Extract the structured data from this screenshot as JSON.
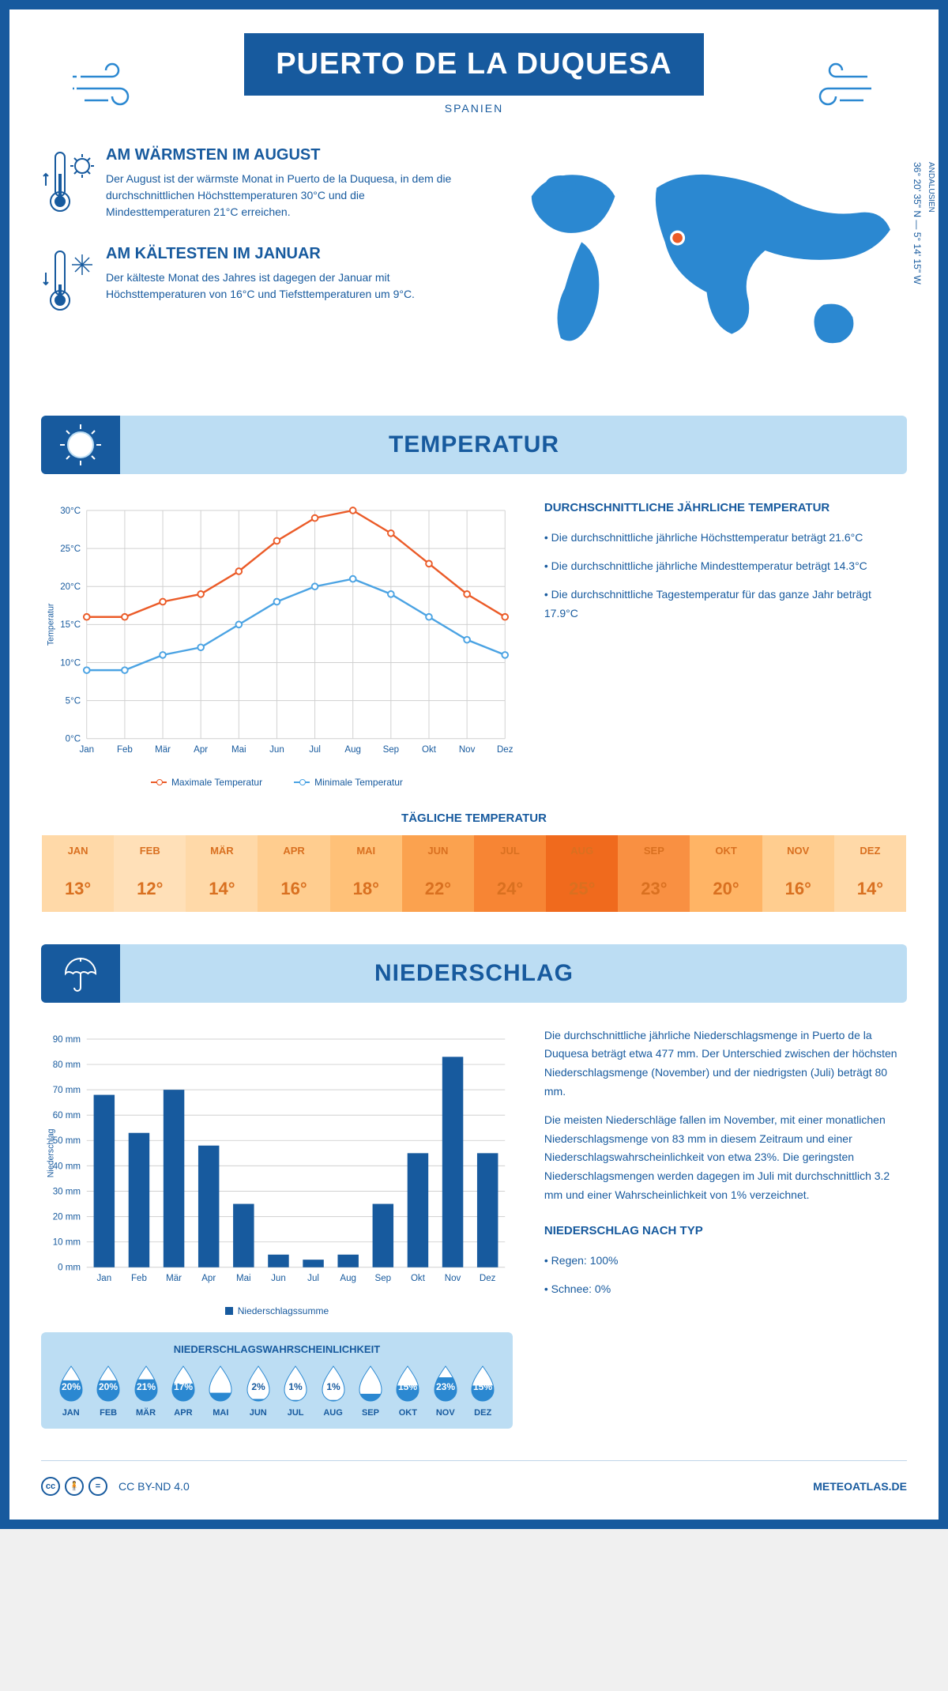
{
  "header": {
    "title": "PUERTO DE LA DUQUESA",
    "subtitle": "SPANIEN",
    "coords": "36° 20' 35\" N — 5° 14' 15\" W",
    "region": "ANDALUSIEN"
  },
  "warmest": {
    "title": "AM WÄRMSTEN IM AUGUST",
    "text": "Der August ist der wärmste Monat in Puerto de la Duquesa, in dem die durchschnittlichen Höchsttemperaturen 30°C und die Mindesttemperaturen 21°C erreichen."
  },
  "coldest": {
    "title": "AM KÄLTESTEN IM JANUAR",
    "text": "Der kälteste Monat des Jahres ist dagegen der Januar mit Höchsttemperaturen von 16°C und Tiefsttemperaturen um 9°C."
  },
  "temp_section": {
    "title": "TEMPERATUR"
  },
  "temp_chart": {
    "type": "line",
    "months": [
      "Jan",
      "Feb",
      "Mär",
      "Apr",
      "Mai",
      "Jun",
      "Jul",
      "Aug",
      "Sep",
      "Okt",
      "Nov",
      "Dez"
    ],
    "ylabel": "Temperatur",
    "ylim": [
      0,
      30
    ],
    "ytick_step": 5,
    "ytick_suffix": "°C",
    "grid_color": "#d0d0d0",
    "series": [
      {
        "label": "Maximale Temperatur",
        "color": "#eb5b28",
        "values": [
          16,
          16,
          18,
          19,
          22,
          26,
          29,
          30,
          27,
          23,
          19,
          16
        ]
      },
      {
        "label": "Minimale Temperatur",
        "color": "#4ba3e3",
        "values": [
          9,
          9,
          11,
          12,
          15,
          18,
          20,
          21,
          19,
          16,
          13,
          11
        ]
      }
    ]
  },
  "temp_text": {
    "title": "DURCHSCHNITTLICHE JÄHRLICHE TEMPERATUR",
    "bullets": [
      "• Die durchschnittliche jährliche Höchsttemperatur beträgt 21.6°C",
      "• Die durchschnittliche jährliche Mindesttemperatur beträgt 14.3°C",
      "• Die durchschnittliche Tagestemperatur für das ganze Jahr beträgt 17.9°C"
    ]
  },
  "daily": {
    "title": "TÄGLICHE TEMPERATUR",
    "months": [
      "JAN",
      "FEB",
      "MÄR",
      "APR",
      "MAI",
      "JUN",
      "JUL",
      "AUG",
      "SEP",
      "OKT",
      "NOV",
      "DEZ"
    ],
    "values": [
      "13°",
      "12°",
      "14°",
      "16°",
      "18°",
      "22°",
      "24°",
      "25°",
      "23°",
      "20°",
      "16°",
      "14°"
    ],
    "bg_colors": [
      "#ffd9a8",
      "#ffe0b8",
      "#ffd9a8",
      "#ffcd8f",
      "#ffc178",
      "#fba24f",
      "#f78534",
      "#f06a1d",
      "#f99042",
      "#ffb465",
      "#ffcd8f",
      "#ffd9a8"
    ]
  },
  "precip_section": {
    "title": "NIEDERSCHLAG"
  },
  "precip_chart": {
    "type": "bar",
    "months": [
      "Jan",
      "Feb",
      "Mär",
      "Apr",
      "Mai",
      "Jun",
      "Jul",
      "Aug",
      "Sep",
      "Okt",
      "Nov",
      "Dez"
    ],
    "ylabel": "Niederschlag",
    "ylim": [
      0,
      90
    ],
    "ytick_step": 10,
    "ytick_suffix": " mm",
    "bar_color": "#175a9e",
    "legend": "Niederschlagssumme",
    "values": [
      68,
      53,
      70,
      48,
      25,
      5,
      3,
      5,
      25,
      45,
      83,
      45
    ]
  },
  "precip_text": {
    "p1": "Die durchschnittliche jährliche Niederschlagsmenge in Puerto de la Duquesa beträgt etwa 477 mm. Der Unterschied zwischen der höchsten Niederschlagsmenge (November) und der niedrigsten (Juli) beträgt 80 mm.",
    "p2": "Die meisten Niederschläge fallen im November, mit einer monatlichen Niederschlagsmenge von 83 mm in diesem Zeitraum und einer Niederschlagswahrscheinlichkeit von etwa 23%. Die geringsten Niederschlagsmengen werden dagegen im Juli mit durchschnittlich 3.2 mm und einer Wahrscheinlichkeit von 1% verzeichnet.",
    "type_title": "NIEDERSCHLAG NACH TYP",
    "type_rain": "• Regen: 100%",
    "type_snow": "• Schnee: 0%"
  },
  "precip_prob": {
    "title": "NIEDERSCHLAGSWAHRSCHEINLICHKEIT",
    "months": [
      "JAN",
      "FEB",
      "MÄR",
      "APR",
      "MAI",
      "JUN",
      "JUL",
      "AUG",
      "SEP",
      "OKT",
      "NOV",
      "DEZ"
    ],
    "values": [
      20,
      20,
      21,
      17,
      8,
      2,
      1,
      1,
      7,
      15,
      23,
      15
    ],
    "fill_color": "#2b88d1",
    "empty_color": "#ffffff"
  },
  "footer": {
    "license": "CC BY-ND 4.0",
    "brand": "METEOATLAS.DE"
  },
  "colors": {
    "primary": "#175a9e",
    "light_blue": "#bcddf3",
    "map_blue": "#2b88d1",
    "orange": "#eb5b28"
  }
}
